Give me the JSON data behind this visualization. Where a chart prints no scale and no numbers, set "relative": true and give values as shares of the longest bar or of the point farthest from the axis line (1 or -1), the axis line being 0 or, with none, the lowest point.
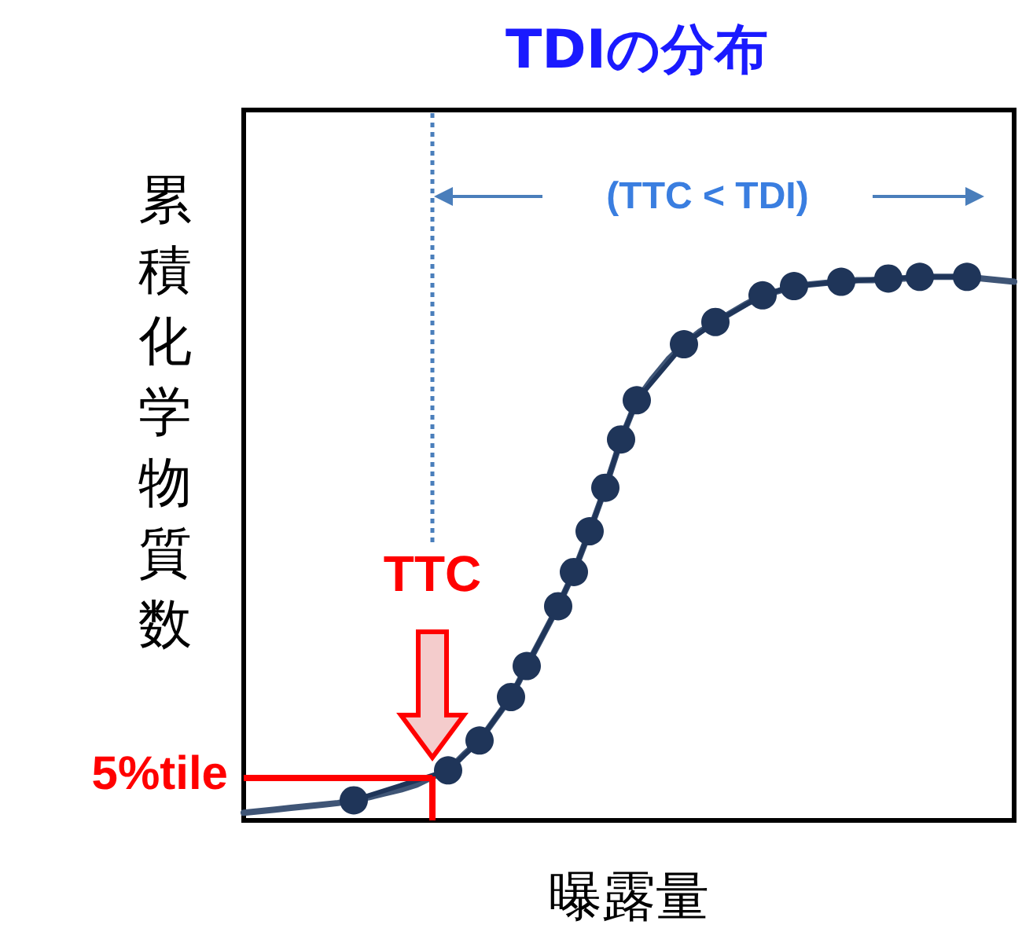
{
  "chart_data": {
    "type": "line",
    "title": "TDIの分布",
    "xlabel": "曝露量",
    "ylabel": "累積化学物質数",
    "relative": true,
    "grid": false,
    "categories": [
      null,
      null,
      null,
      null,
      null,
      null,
      null,
      null,
      null,
      null,
      null,
      null,
      null,
      null,
      null,
      null,
      null,
      null,
      null,
      null,
      null,
      null,
      null,
      null,
      null,
      null,
      null,
      null,
      null,
      null,
      null,
      null,
      null,
      null,
      null,
      null,
      null,
      null,
      null,
      null,
      null,
      null,
      null,
      null,
      null,
      null,
      null,
      null,
      null,
      null
    ],
    "series": [
      {
        "color": "#3f5576",
        "marker": "none",
        "values": [
          0.014,
          0.017,
          0.02,
          0.023,
          0.026,
          0.029,
          0.032,
          0.037,
          0.043,
          0.05,
          0.057,
          0.066,
          0.08,
          0.092,
          0.121,
          0.147,
          0.187,
          0.227,
          0.284,
          0.339,
          0.394,
          0.457,
          0.532,
          0.612,
          0.701,
          0.773,
          0.813,
          0.848,
          0.876,
          0.899,
          0.917,
          0.934,
          0.951,
          0.966,
          0.974,
          0.983,
          0.986,
          0.989,
          0.991,
          0.994,
          0.994,
          0.997,
          0.997,
          1.0,
          1.0,
          1.0,
          1.0,
          0.997,
          0.994,
          0.991
        ]
      },
      {
        "color": "#1f3559",
        "marker": "circle",
        "values": [
          null,
          null,
          null,
          null,
          null,
          null,
          null,
          0.037,
          null,
          null,
          null,
          null,
          null,
          0.092,
          null,
          0.147,
          null,
          0.227,
          0.284,
          null,
          0.394,
          0.457,
          0.532,
          0.612,
          0.701,
          0.773,
          null,
          null,
          0.876,
          null,
          0.917,
          null,
          null,
          0.966,
          null,
          0.983,
          null,
          null,
          0.991,
          null,
          null,
          0.997,
          null,
          1.0,
          null,
          null,
          1.0,
          null,
          null,
          null
        ]
      }
    ],
    "ref_lines": [
      {
        "axis": "y",
        "value": 0.08,
        "label": "5%tile",
        "color": "#ff0000",
        "line_style": "solid"
      }
    ],
    "annotations": [
      "(TTC < TDI)",
      "TTC"
    ]
  }
}
